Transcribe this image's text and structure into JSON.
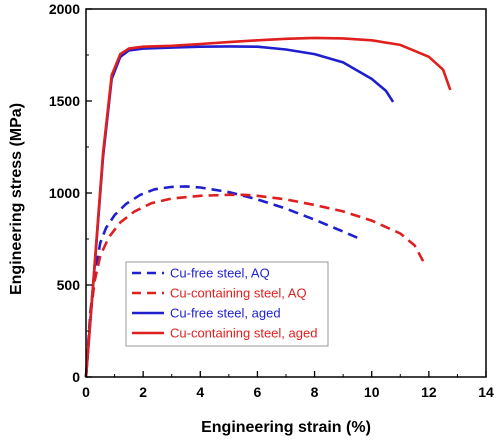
{
  "chart_data": {
    "type": "line",
    "xlabel": "Engineering strain (%)",
    "ylabel": "Engineering stress (MPa)",
    "xlim": [
      0,
      14
    ],
    "ylim": [
      0,
      2000
    ],
    "xticks": [
      0,
      2,
      4,
      6,
      8,
      10,
      12,
      14
    ],
    "yticks": [
      0,
      500,
      1000,
      1500,
      2000
    ],
    "xtick_labels": [
      "0",
      "2",
      "4",
      "6",
      "8",
      "10",
      "12",
      "14"
    ],
    "ytick_labels": [
      "0",
      "500",
      "1000",
      "1500",
      "2000"
    ],
    "grid": false,
    "legend_position": "lower-left",
    "series": [
      {
        "name": "Cu-free steel, AQ",
        "color": "#1f1fd0",
        "style": "dashed",
        "x": [
          0,
          0.15,
          0.3,
          0.5,
          0.7,
          1.0,
          1.4,
          1.9,
          2.4,
          3.0,
          3.5,
          4.0,
          5.0,
          6.0,
          7.0,
          8.0,
          9.0,
          9.6
        ],
        "y": [
          0,
          350,
          560,
          730,
          810,
          880,
          940,
          990,
          1020,
          1033,
          1036,
          1030,
          1005,
          965,
          915,
          855,
          790,
          750
        ]
      },
      {
        "name": "Cu-containing steel, AQ",
        "color": "#e01f1f",
        "style": "dashed",
        "x": [
          0,
          0.15,
          0.3,
          0.5,
          0.8,
          1.2,
          1.7,
          2.3,
          3.0,
          4.0,
          5.0,
          5.5,
          6.0,
          7.0,
          8.0,
          9.0,
          10.0,
          11.0,
          11.5,
          11.8
        ],
        "y": [
          0,
          330,
          520,
          660,
          760,
          840,
          900,
          945,
          970,
          985,
          990,
          990,
          985,
          965,
          935,
          900,
          850,
          780,
          715,
          630
        ]
      },
      {
        "name": "Cu-free steel, aged",
        "color": "#1f1fd0",
        "style": "solid",
        "x": [
          0,
          0.3,
          0.6,
          0.9,
          1.2,
          1.5,
          2.0,
          3.0,
          4.0,
          5.0,
          6.0,
          7.0,
          8.0,
          9.0,
          10.0,
          10.5,
          10.75
        ],
        "y": [
          0,
          600,
          1200,
          1620,
          1740,
          1775,
          1785,
          1790,
          1795,
          1797,
          1795,
          1780,
          1755,
          1710,
          1620,
          1555,
          1495
        ]
      },
      {
        "name": "Cu-containing steel, aged",
        "color": "#e01f1f",
        "style": "solid",
        "x": [
          0,
          0.3,
          0.6,
          0.9,
          1.2,
          1.5,
          2.0,
          3.0,
          4.0,
          5.0,
          6.0,
          7.0,
          8.0,
          9.0,
          10.0,
          11.0,
          12.0,
          12.5,
          12.75
        ],
        "y": [
          0,
          610,
          1220,
          1640,
          1755,
          1785,
          1795,
          1800,
          1810,
          1820,
          1830,
          1838,
          1843,
          1840,
          1830,
          1805,
          1740,
          1670,
          1560
        ]
      }
    ]
  }
}
